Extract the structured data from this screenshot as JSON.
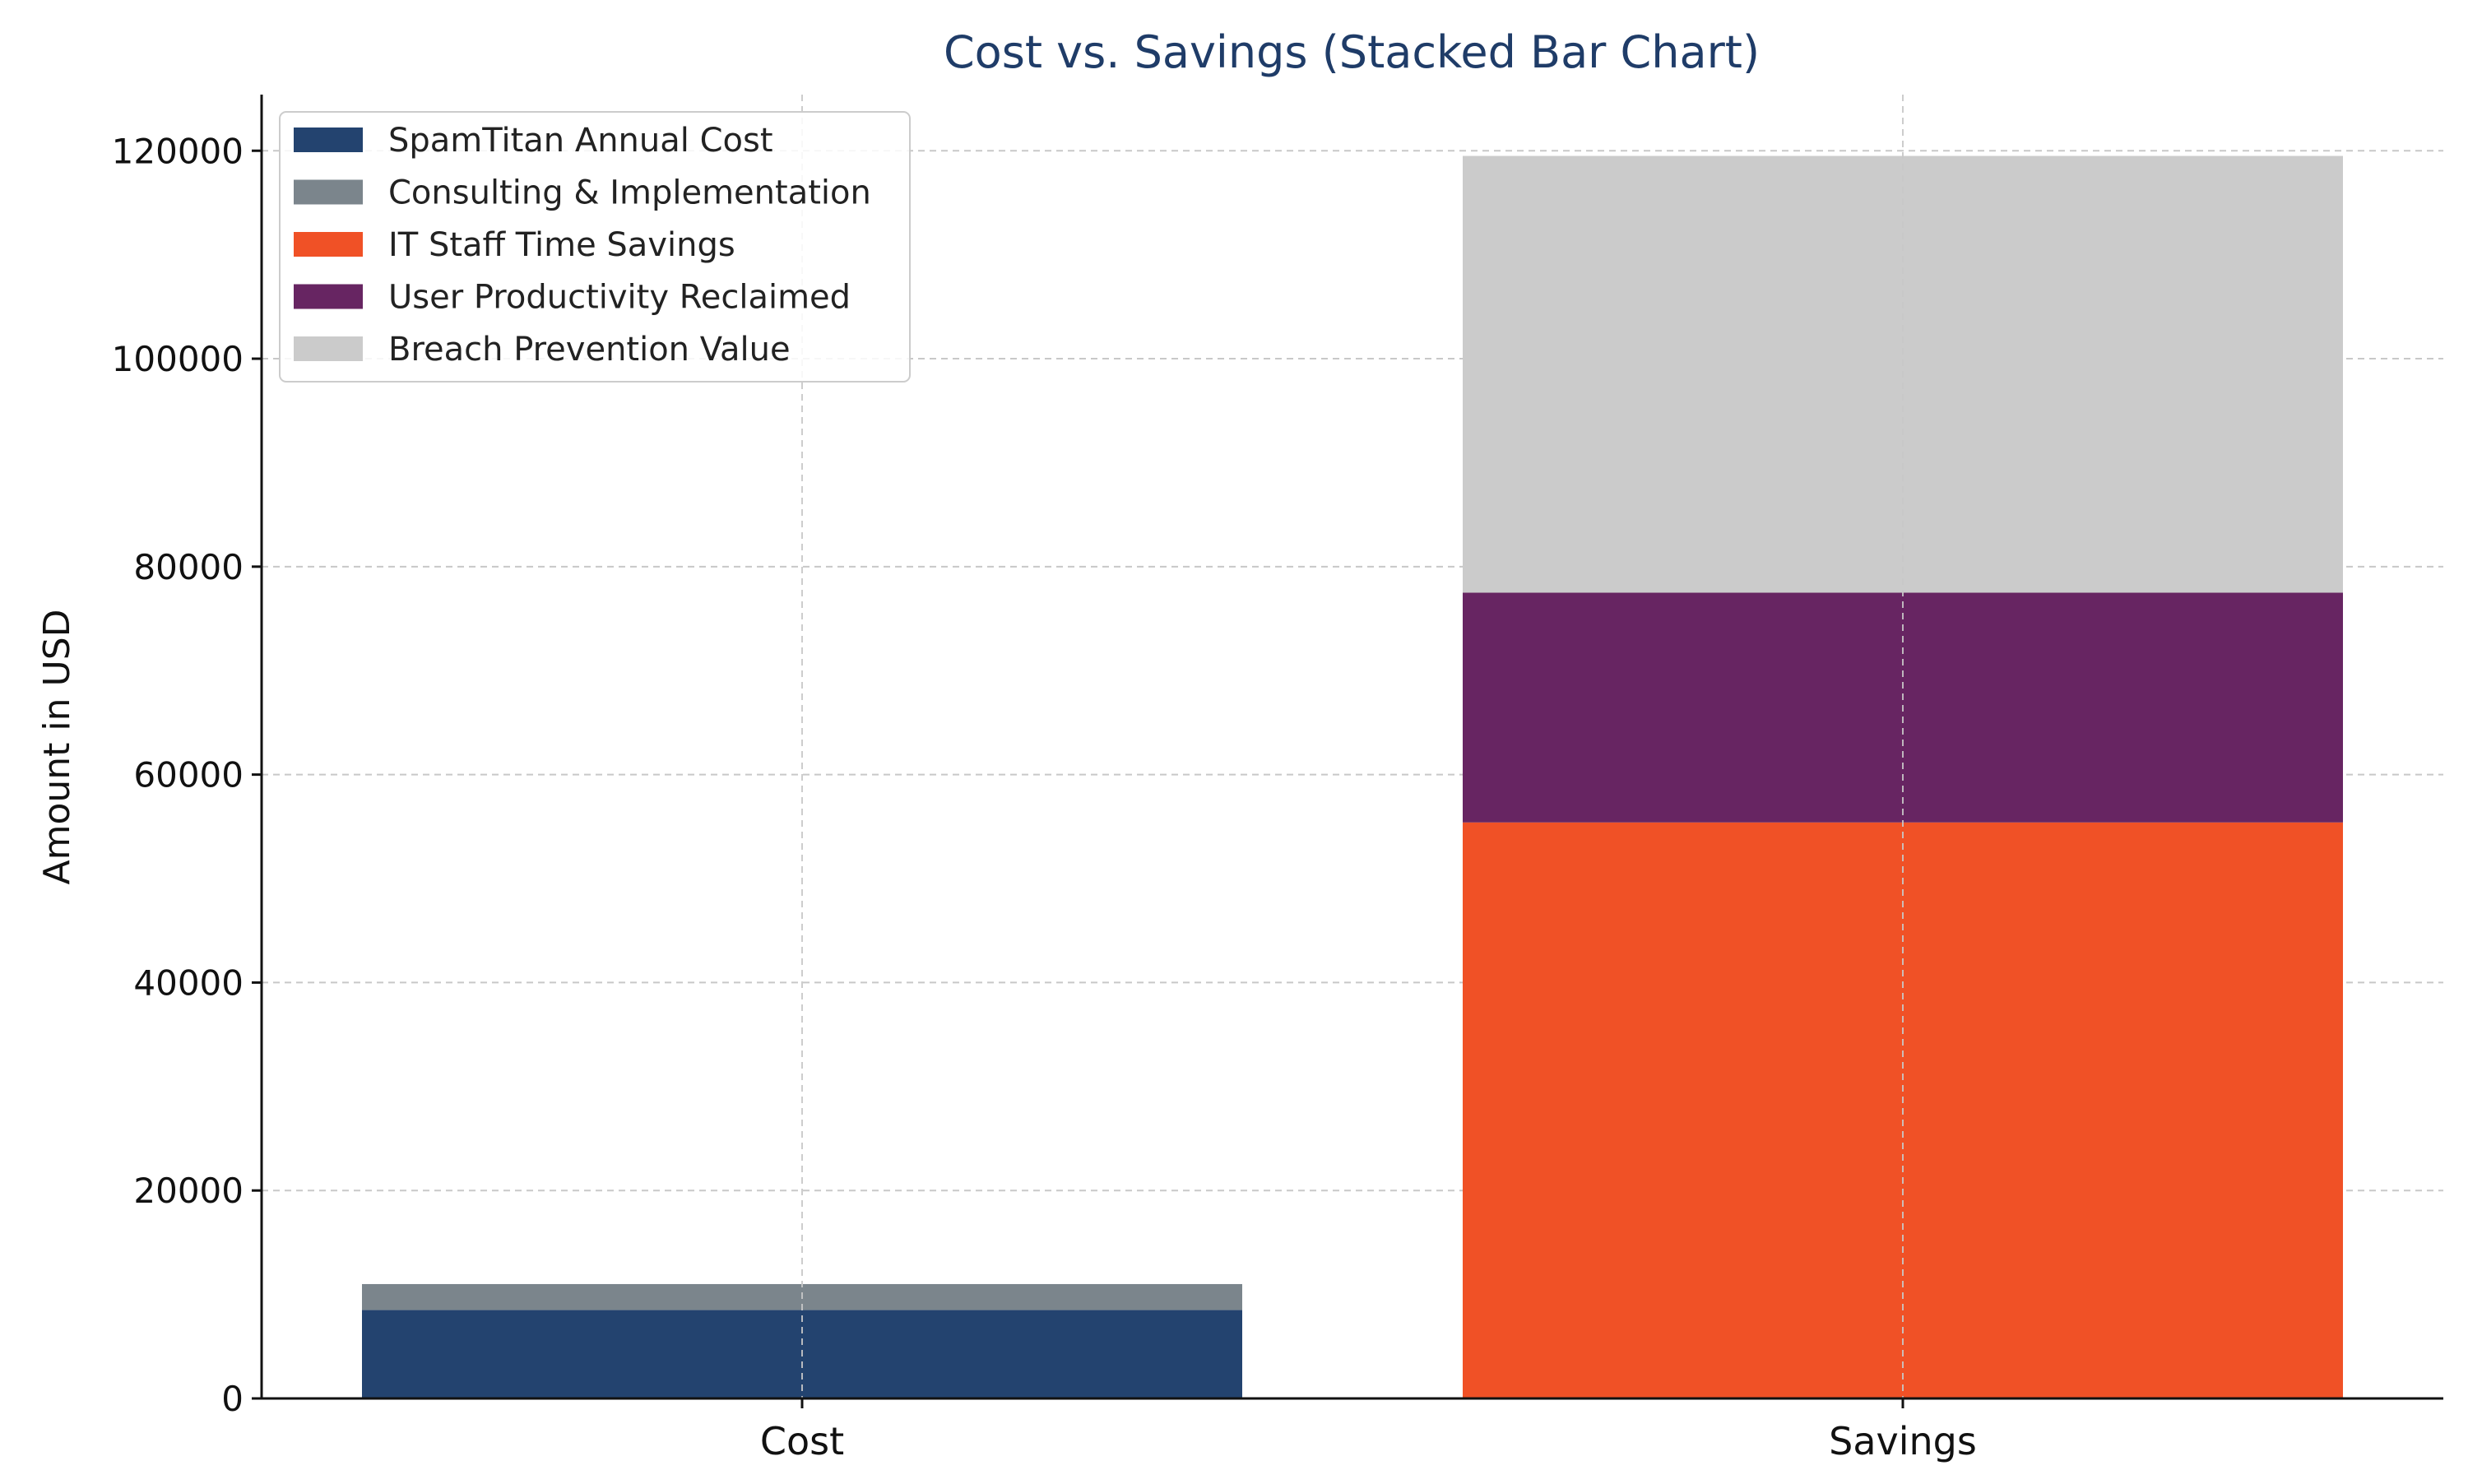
{
  "chart_data": {
    "type": "bar",
    "stacked": true,
    "title": "Cost vs. Savings (Stacked Bar Chart)",
    "xlabel": "",
    "ylabel": "Amount in USD",
    "categories": [
      "Cost",
      "Savings"
    ],
    "ylim": [
      0,
      125400
    ],
    "yticks": [
      0,
      20000,
      40000,
      60000,
      80000,
      100000,
      120000
    ],
    "grid": true,
    "legend_position": "top-left",
    "series": [
      {
        "name": "SpamTitan Annual Cost",
        "values": [
          8500,
          0
        ],
        "color": "#23436f"
      },
      {
        "name": "Consulting & Implementation",
        "values": [
          2500,
          0
        ],
        "color": "#7b858c"
      },
      {
        "name": "IT Staff Time Savings",
        "values": [
          0,
          55400
        ],
        "color": "#f05126"
      },
      {
        "name": "User Productivity Reclaimed",
        "values": [
          0,
          22100
        ],
        "color": "#672562"
      },
      {
        "name": "Breach Prevention Value",
        "values": [
          0,
          42000
        ],
        "color": "#cbcbcb"
      }
    ],
    "title_color": "#1f3c68"
  }
}
